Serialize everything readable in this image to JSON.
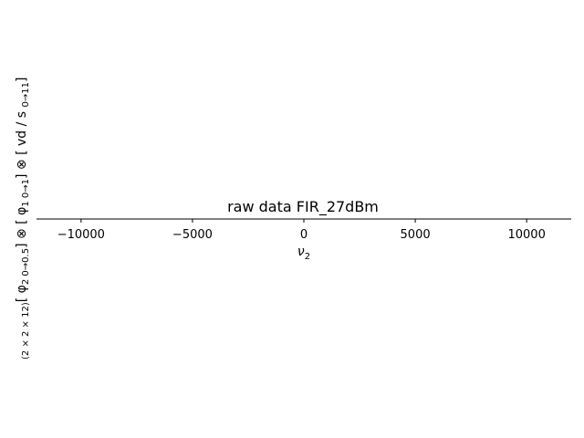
{
  "chart_data": {
    "type": "line",
    "title": "raw data FIR_27dBm",
    "xlabel": {
      "base": "ν",
      "sub": "2"
    },
    "ylabel": {
      "parts": [
        {
          "t": "(2 × 2 × 12)",
          "kind": "sub"
        },
        {
          "t": "[ φ",
          "kind": "main"
        },
        {
          "t": "2 0→0.5",
          "kind": "sub"
        },
        {
          "t": "] ⊗ [ φ",
          "kind": "main"
        },
        {
          "t": "1 0→1",
          "kind": "sub"
        },
        {
          "t": "] ⊗ [ vd / s ",
          "kind": "main"
        },
        {
          "t": "0→11",
          "kind": "sub"
        },
        {
          "t": "]",
          "kind": "main"
        }
      ]
    },
    "xlim": [
      -12000,
      12000
    ],
    "xticks": [
      -10000,
      -5000,
      0,
      5000,
      10000
    ],
    "xtick_labels": [
      "−10000",
      "−5000",
      "0",
      "5000",
      "10000"
    ],
    "series": [],
    "grid": false
  }
}
